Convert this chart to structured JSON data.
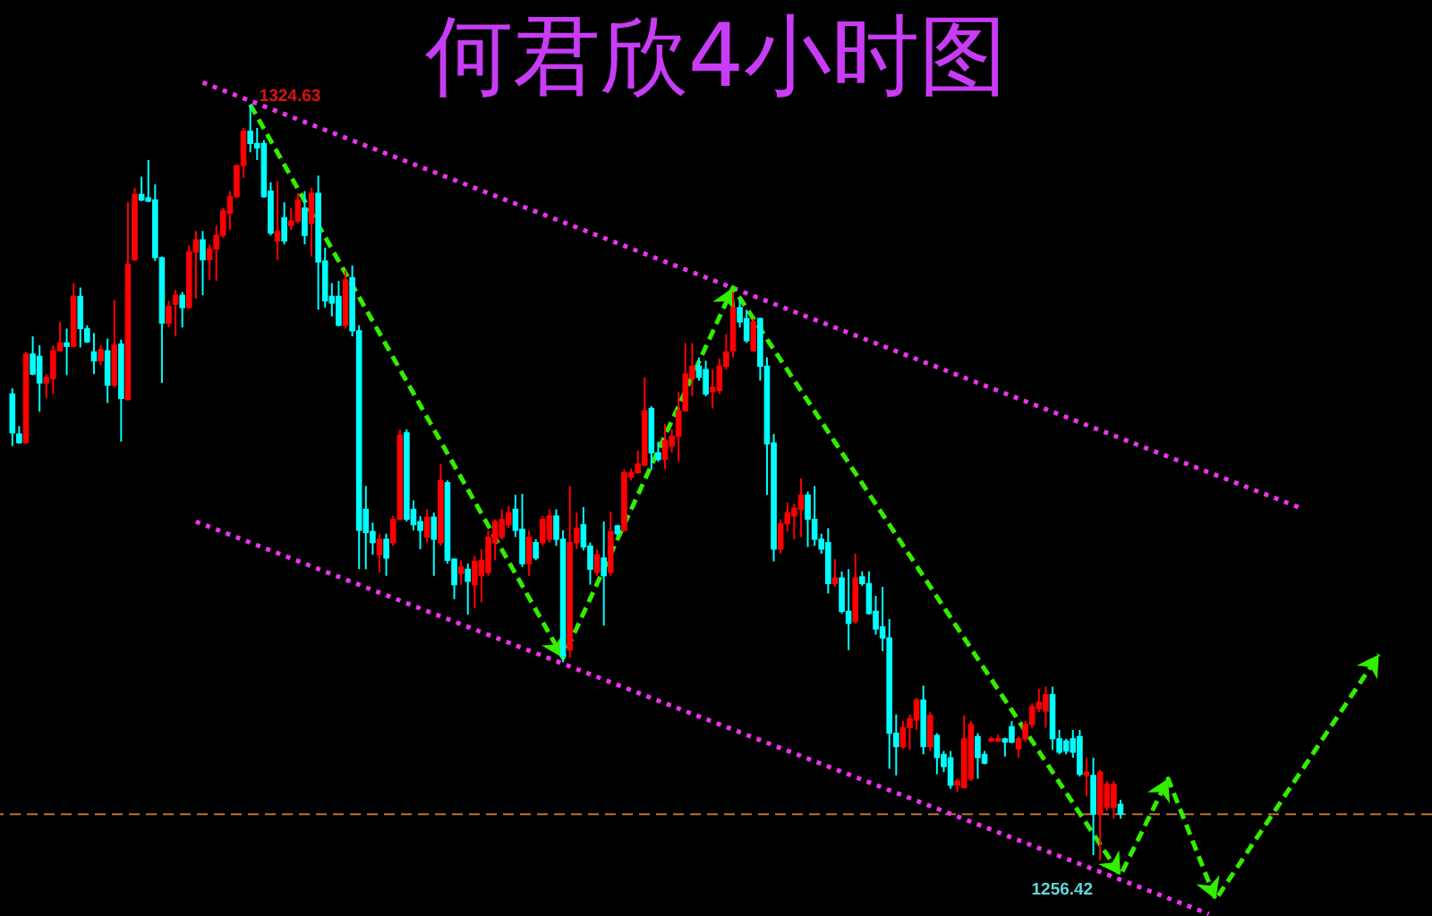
{
  "chart_data": {
    "type": "candlestick",
    "title": "何君欣4小时图",
    "categories": [
      null,
      null,
      null,
      null,
      null,
      null,
      null,
      null,
      null,
      null,
      null,
      null,
      null,
      null,
      null,
      null,
      null,
      null,
      null,
      null,
      null,
      null,
      null,
      null,
      null,
      null,
      null,
      null,
      null,
      null,
      null,
      null,
      null,
      null,
      null,
      null,
      null,
      null,
      null,
      null,
      null,
      null,
      null,
      null,
      null,
      null,
      null,
      null,
      null,
      null,
      null,
      null,
      null,
      null,
      null,
      null,
      null,
      null,
      null,
      null,
      null,
      null,
      null,
      null,
      null,
      null,
      null,
      null,
      null,
      null,
      null,
      null,
      null,
      null,
      null,
      null,
      null,
      null,
      null,
      null,
      null,
      null,
      null,
      null,
      null,
      null,
      null,
      null,
      null,
      null,
      null,
      null,
      null,
      null,
      null,
      null,
      null,
      null,
      null,
      null,
      null,
      null,
      null,
      null,
      null,
      null,
      null,
      null,
      null,
      null,
      null,
      null,
      null,
      null,
      null,
      null,
      null,
      null,
      null,
      null,
      null,
      null,
      null,
      null,
      null,
      null,
      null,
      null,
      null,
      null,
      null,
      null,
      null,
      null,
      null,
      null,
      null,
      null,
      null,
      null,
      null,
      null,
      null,
      null,
      null,
      null,
      null,
      null,
      null,
      null,
      null,
      null,
      null,
      null,
      null,
      null,
      null,
      null,
      null,
      null,
      null,
      null,
      null,
      null,
      null,
      null,
      null,
      null,
      null,
      null,
      null,
      null,
      null,
      null,
      null,
      null,
      null,
      null,
      null,
      null,
      null,
      null,
      null,
      null,
      null,
      null,
      null,
      null,
      null,
      null,
      null,
      null,
      null,
      null,
      null,
      null,
      null,
      null,
      null,
      null,
      null,
      null,
      null,
      null,
      null,
      null,
      null,
      null
    ],
    "ohlc": [
      [
        1298.5,
        1299.0,
        1293.8,
        1295.0
      ],
      [
        1294.9,
        1295.6,
        1294.0,
        1294.1
      ],
      [
        1294.1,
        1302.3,
        1294.0,
        1302.1
      ],
      [
        1302.1,
        1303.7,
        1300.2,
        1300.3
      ],
      [
        1301.9,
        1302.9,
        1296.9,
        1299.5
      ],
      [
        1299.5,
        1300.3,
        1298.1,
        1300.0
      ],
      [
        1299.9,
        1302.9,
        1298.5,
        1302.4
      ],
      [
        1302.4,
        1305.0,
        1302.3,
        1303.1
      ],
      [
        1303.1,
        1304.4,
        1300.2,
        1302.8
      ],
      [
        1302.8,
        1308.5,
        1302.7,
        1307.3
      ],
      [
        1307.3,
        1308.1,
        1302.7,
        1304.4
      ],
      [
        1304.4,
        1304.7,
        1303.1,
        1303.2
      ],
      [
        1302.3,
        1304.0,
        1300.3,
        1301.5
      ],
      [
        1301.5,
        1302.9,
        1301.1,
        1302.5
      ],
      [
        1302.4,
        1303.5,
        1297.7,
        1299.3
      ],
      [
        1299.3,
        1307.0,
        1299.1,
        1302.9
      ],
      [
        1303.0,
        1303.4,
        1294.2,
        1298.1
      ],
      [
        1298.0,
        1315.8,
        1297.9,
        1310.2
      ],
      [
        1310.6,
        1317.1,
        1310.5,
        1316.5
      ],
      [
        1316.5,
        1318.1,
        1315.9,
        1316.0
      ],
      [
        1316.2,
        1319.6,
        1315.8,
        1315.9
      ],
      [
        1316.0,
        1317.4,
        1310.5,
        1310.8
      ],
      [
        1310.8,
        1310.9,
        1299.5,
        1304.9
      ],
      [
        1304.9,
        1306.9,
        1304.5,
        1306.4
      ],
      [
        1306.6,
        1307.9,
        1303.7,
        1307.4
      ],
      [
        1307.4,
        1307.7,
        1304.5,
        1306.3
      ],
      [
        1306.3,
        1311.9,
        1306.2,
        1311.3
      ],
      [
        1311.3,
        1313.2,
        1307.1,
        1312.4
      ],
      [
        1312.4,
        1313.2,
        1307.4,
        1310.6
      ],
      [
        1310.6,
        1312.0,
        1308.8,
        1311.6
      ],
      [
        1311.6,
        1313.7,
        1308.7,
        1312.8
      ],
      [
        1312.8,
        1315.3,
        1312.6,
        1315.0
      ],
      [
        1314.8,
        1316.8,
        1313.3,
        1316.3
      ],
      [
        1316.3,
        1319.2,
        1316.2,
        1319.1
      ],
      [
        1319.1,
        1322.5,
        1318.0,
        1322.2
      ],
      [
        1322.2,
        1324.63,
        1320.3,
        1321.1
      ],
      [
        1321.1,
        1322.5,
        1319.6,
        1320.7
      ],
      [
        1321.1,
        1321.4,
        1316.2,
        1316.3
      ],
      [
        1316.8,
        1317.6,
        1312.8,
        1313.0
      ],
      [
        1312.3,
        1317.7,
        1310.6,
        1313.2
      ],
      [
        1314.4,
        1315.8,
        1312.0,
        1312.3
      ],
      [
        1313.7,
        1315.3,
        1313.3,
        1314.1
      ],
      [
        1314.1,
        1316.6,
        1313.9,
        1316.0
      ],
      [
        1315.3,
        1316.8,
        1312.0,
        1312.8
      ],
      [
        1313.9,
        1317.1,
        1310.9,
        1316.6
      ],
      [
        1316.6,
        1318.2,
        1306.1,
        1310.4
      ],
      [
        1310.5,
        1311.7,
        1306.3,
        1306.9
      ],
      [
        1307.3,
        1308.5,
        1305.5,
        1306.7
      ],
      [
        1307.3,
        1308.7,
        1304.6,
        1304.7
      ],
      [
        1304.7,
        1309.6,
        1304.4,
        1308.8
      ],
      [
        1309.0,
        1310.1,
        1303.7,
        1304.2
      ],
      [
        1304.2,
        1304.7,
        1282.7,
        1286.2
      ],
      [
        1288.1,
        1290.2,
        1282.7,
        1286.0
      ],
      [
        1286.1,
        1286.9,
        1284.0,
        1285.1
      ],
      [
        1284.0,
        1285.9,
        1282.4,
        1285.4
      ],
      [
        1285.4,
        1285.9,
        1282.1,
        1283.7
      ],
      [
        1285.1,
        1287.5,
        1284.8,
        1287.2
      ],
      [
        1287.2,
        1295.3,
        1287.1,
        1294.8
      ],
      [
        1295.0,
        1295.3,
        1287.0,
        1287.2
      ],
      [
        1288.1,
        1288.9,
        1286.2,
        1286.7
      ],
      [
        1287.0,
        1287.5,
        1284.5,
        1286.2
      ],
      [
        1285.6,
        1288.1,
        1285.1,
        1287.4
      ],
      [
        1287.4,
        1287.8,
        1282.1,
        1285.4
      ],
      [
        1285.1,
        1292.2,
        1284.8,
        1290.7
      ],
      [
        1290.5,
        1290.7,
        1283.2,
        1283.5
      ],
      [
        1283.6,
        1283.7,
        1280.0,
        1281.3
      ],
      [
        1282.3,
        1283.5,
        1281.3,
        1282.9
      ],
      [
        1282.7,
        1283.2,
        1278.6,
        1281.6
      ],
      [
        1281.3,
        1283.9,
        1279.2,
        1283.4
      ],
      [
        1282.1,
        1284.5,
        1279.7,
        1283.5
      ],
      [
        1282.4,
        1286.2,
        1282.1,
        1285.6
      ],
      [
        1285.1,
        1287.2,
        1283.5,
        1287.0
      ],
      [
        1285.6,
        1288.1,
        1285.4,
        1287.2
      ],
      [
        1286.7,
        1288.4,
        1286.4,
        1287.8
      ],
      [
        1288.1,
        1289.4,
        1285.6,
        1286.2
      ],
      [
        1286.3,
        1289.5,
        1282.9,
        1283.2
      ],
      [
        1283.2,
        1286.2,
        1282.1,
        1285.6
      ],
      [
        1285.1,
        1285.4,
        1283.5,
        1283.7
      ],
      [
        1285.1,
        1287.5,
        1284.8,
        1287.2
      ],
      [
        1285.4,
        1288.1,
        1285.1,
        1287.5
      ],
      [
        1287.5,
        1288.1,
        1284.8,
        1285.4
      ],
      [
        1285.4,
        1286.2,
        1274.3,
        1274.9
      ],
      [
        1275.4,
        1290.2,
        1274.7,
        1285.1
      ],
      [
        1285.1,
        1287.8,
        1284.5,
        1286.4
      ],
      [
        1286.7,
        1288.3,
        1284.4,
        1284.7
      ],
      [
        1284.8,
        1285.1,
        1281.3,
        1282.7
      ],
      [
        1282.4,
        1284.5,
        1282.1,
        1284.0
      ],
      [
        1283.7,
        1287.0,
        1277.6,
        1282.1
      ],
      [
        1282.4,
        1287.9,
        1282.1,
        1286.1
      ],
      [
        1286.6,
        1286.7,
        1285.7,
        1285.9
      ],
      [
        1286.2,
        1291.7,
        1286.1,
        1291.4
      ],
      [
        1291.0,
        1291.8,
        1290.7,
        1291.4
      ],
      [
        1291.4,
        1293.4,
        1291.3,
        1292.2
      ],
      [
        1292.1,
        1300.0,
        1292.0,
        1297.0
      ],
      [
        1297.2,
        1297.4,
        1291.7,
        1293.2
      ],
      [
        1293.2,
        1294.2,
        1292.4,
        1292.6
      ],
      [
        1292.6,
        1295.8,
        1291.7,
        1294.3
      ],
      [
        1293.8,
        1295.3,
        1293.2,
        1294.7
      ],
      [
        1294.7,
        1298.7,
        1292.4,
        1297.0
      ],
      [
        1297.0,
        1303.1,
        1296.9,
        1300.3
      ],
      [
        1299.9,
        1303.1,
        1298.3,
        1301.0
      ],
      [
        1301.0,
        1301.8,
        1299.7,
        1300.0
      ],
      [
        1300.7,
        1301.5,
        1298.3,
        1298.5
      ],
      [
        1298.7,
        1300.7,
        1297.2,
        1299.1
      ],
      [
        1298.8,
        1301.7,
        1298.5,
        1301.0
      ],
      [
        1301.0,
        1303.9,
        1300.7,
        1302.3
      ],
      [
        1302.4,
        1307.7,
        1301.8,
        1306.3
      ],
      [
        1306.3,
        1307.0,
        1304.5,
        1305.0
      ],
      [
        1305.3,
        1306.1,
        1303.1,
        1303.3
      ],
      [
        1302.4,
        1305.3,
        1302.3,
        1305.0
      ],
      [
        1305.3,
        1305.4,
        1299.7,
        1301.0
      ],
      [
        1301.0,
        1301.8,
        1289.4,
        1294.0
      ],
      [
        1294.1,
        1294.9,
        1283.4,
        1284.5
      ],
      [
        1284.5,
        1287.2,
        1284.1,
        1286.8
      ],
      [
        1286.8,
        1288.7,
        1286.1,
        1287.8
      ],
      [
        1287.5,
        1288.6,
        1285.4,
        1288.2
      ],
      [
        1288.1,
        1290.9,
        1285.6,
        1289.4
      ],
      [
        1289.4,
        1289.7,
        1284.7,
        1287.2
      ],
      [
        1287.2,
        1290.2,
        1284.8,
        1285.4
      ],
      [
        1285.4,
        1285.9,
        1284.1,
        1284.5
      ],
      [
        1285.1,
        1286.4,
        1280.5,
        1281.4
      ],
      [
        1281.4,
        1283.6,
        1281.1,
        1281.9
      ],
      [
        1281.9,
        1282.5,
        1278.7,
        1278.9
      ],
      [
        1278.9,
        1282.7,
        1275.4,
        1277.8
      ],
      [
        1278.0,
        1284.1,
        1277.8,
        1281.9
      ],
      [
        1282.0,
        1282.5,
        1281.2,
        1281.4
      ],
      [
        1281.4,
        1282.5,
        1278.6,
        1278.7
      ],
      [
        1278.9,
        1280.3,
        1276.8,
        1277.3
      ],
      [
        1277.5,
        1281.1,
        1275.3,
        1276.5
      ],
      [
        1276.5,
        1278.2,
        1264.7,
        1267.9
      ],
      [
        1267.9,
        1269.6,
        1264.1,
        1266.7
      ],
      [
        1266.7,
        1269.0,
        1266.5,
        1268.4
      ],
      [
        1268.4,
        1269.6,
        1266.4,
        1269.2
      ],
      [
        1269.1,
        1271.1,
        1268.2,
        1270.9
      ],
      [
        1270.9,
        1272.2,
        1266.0,
        1266.7
      ],
      [
        1266.7,
        1269.8,
        1266.3,
        1269.5
      ],
      [
        1267.7,
        1267.9,
        1264.2,
        1265.7
      ],
      [
        1266.0,
        1266.3,
        1264.4,
        1264.9
      ],
      [
        1265.7,
        1266.3,
        1262.9,
        1263.2
      ],
      [
        1263.2,
        1263.8,
        1262.6,
        1263.6
      ],
      [
        1263.0,
        1269.5,
        1262.9,
        1267.4
      ],
      [
        1263.8,
        1269.0,
        1263.6,
        1268.7
      ],
      [
        1267.6,
        1267.9,
        1263.8,
        1265.7
      ],
      [
        1266.0,
        1266.3,
        1265.1,
        1265.2
      ],
      [
        1267.2,
        1267.6,
        1267.1,
        1267.4
      ],
      [
        1267.2,
        1267.8,
        1267.1,
        1267.4
      ],
      [
        1267.4,
        1267.5,
        1265.8,
        1267.1
      ],
      [
        1268.5,
        1269.0,
        1267.0,
        1267.1
      ],
      [
        1266.5,
        1267.6,
        1265.7,
        1267.4
      ],
      [
        1267.4,
        1269.0,
        1267.1,
        1268.7
      ],
      [
        1268.7,
        1270.6,
        1268.4,
        1270.3
      ],
      [
        1270.1,
        1271.9,
        1269.8,
        1270.7
      ],
      [
        1269.9,
        1272.1,
        1268.4,
        1271.4
      ],
      [
        1271.4,
        1272.1,
        1266.4,
        1267.4
      ],
      [
        1267.4,
        1268.2,
        1266.0,
        1266.2
      ],
      [
        1267.2,
        1267.4,
        1266.0,
        1266.3
      ],
      [
        1267.4,
        1268.2,
        1265.7,
        1266.2
      ],
      [
        1267.6,
        1268.2,
        1264.0,
        1264.2
      ],
      [
        1264.1,
        1265.7,
        1262.2,
        1264.4
      ],
      [
        1264.1,
        1265.7,
        1256.9,
        1260.6
      ],
      [
        1260.6,
        1264.6,
        1256.42,
        1264.4
      ],
      [
        1261.2,
        1263.6,
        1260.9,
        1263.3
      ],
      [
        1261.2,
        1263.6,
        1260.2,
        1263.3
      ],
      [
        1261.5,
        1261.9,
        1260.2,
        1260.6
      ],
      null,
      null,
      null,
      null,
      null,
      null,
      null,
      null,
      null,
      null,
      null,
      null,
      null,
      null,
      null,
      null,
      null,
      null,
      null,
      null,
      null,
      null,
      null,
      null,
      null,
      null,
      null,
      null,
      null,
      null,
      null,
      null,
      null,
      null,
      null,
      null,
      null,
      null,
      null,
      null,
      null,
      null,
      null,
      null
    ],
    "colors": [
      "#00ffff",
      "#00ffff",
      "#ff0000",
      "#00ffff",
      "#00ffff",
      "#ff0000",
      "#ff0000",
      "#ff0000",
      "#00ffff",
      "#ff0000",
      "#00ffff",
      "#00ffff",
      "#00ffff",
      "#ff0000",
      "#00ffff",
      "#ff0000",
      "#00ffff",
      "#ff0000",
      "#ff0000",
      "#00ffff",
      "#00ffff",
      "#00ffff",
      "#00ffff",
      "#ff0000",
      "#ff0000",
      "#00ffff",
      "#ff0000",
      "#ff0000",
      "#00ffff",
      "#ff0000",
      "#ff0000",
      "#ff0000",
      "#ff0000",
      "#ff0000",
      "#ff0000",
      "#00ffff",
      "#00ffff",
      "#00ffff",
      "#00ffff",
      "#ff0000",
      "#00ffff",
      "#ff0000",
      "#ff0000",
      "#00ffff",
      "#ff0000",
      "#00ffff",
      "#00ffff",
      "#00ffff",
      "#00ffff",
      "#ff0000",
      "#00ffff",
      "#00ffff",
      "#00ffff",
      "#00ffff",
      "#ff0000",
      "#00ffff",
      "#ff0000",
      "#ff0000",
      "#00ffff",
      "#00ffff",
      "#00ffff",
      "#ff0000",
      "#00ffff",
      "#ff0000",
      "#00ffff",
      "#00ffff",
      "#ff0000",
      "#00ffff",
      "#ff0000",
      "#ff0000",
      "#ff0000",
      "#ff0000",
      "#ff0000",
      "#ff0000",
      "#00ffff",
      "#00ffff",
      "#ff0000",
      "#00ffff",
      "#ff0000",
      "#ff0000",
      "#00ffff",
      "#00ffff",
      "#ff0000",
      "#ff0000",
      "#00ffff",
      "#00ffff",
      "#ff0000",
      "#00ffff",
      "#ff0000",
      "#00ffff",
      "#ff0000",
      "#ff0000",
      "#ff0000",
      "#ff0000",
      "#00ffff",
      "#00ffff",
      "#ff0000",
      "#ff0000",
      "#ff0000",
      "#ff0000",
      "#ff0000",
      "#00ffff",
      "#00ffff",
      "#ff0000",
      "#ff0000",
      "#ff0000",
      "#ff0000",
      "#00ffff",
      "#00ffff",
      "#ff0000",
      "#00ffff",
      "#00ffff",
      "#00ffff",
      "#ff0000",
      "#ff0000",
      "#ff0000",
      "#ff0000",
      "#00ffff",
      "#00ffff",
      "#00ffff",
      "#00ffff",
      "#ff0000",
      "#00ffff",
      "#00ffff",
      "#ff0000",
      "#00ffff",
      "#00ffff",
      "#00ffff",
      "#00ffff",
      "#00ffff",
      "#00ffff",
      "#ff0000",
      "#ff0000",
      "#ff0000",
      "#00ffff",
      "#ff0000",
      "#00ffff",
      "#00ffff",
      "#00ffff",
      "#ff0000",
      "#ff0000",
      "#ff0000",
      "#00ffff",
      "#00ffff",
      "#ff0000",
      "#ff0000",
      "#00ffff",
      "#00ffff",
      "#ff0000",
      "#ff0000",
      "#ff0000",
      "#ff0000",
      "#ff0000",
      "#00ffff",
      "#00ffff",
      "#00ffff",
      "#00ffff",
      "#00ffff",
      "#ff0000",
      "#00ffff",
      "#ff0000",
      "#ff0000",
      "#ff0000",
      "#00ffff",
      null,
      null,
      null,
      null,
      null,
      null,
      null,
      null,
      null,
      null,
      null,
      null,
      null,
      null,
      null,
      null,
      null,
      null,
      null,
      null,
      null,
      null,
      null,
      null,
      null,
      null,
      null,
      null,
      null,
      null,
      null,
      null,
      null,
      null,
      null,
      null,
      null,
      null,
      null,
      null,
      null,
      null,
      null,
      null
    ],
    "series": [
      {
        "type": "line",
        "color": "#ee33ee",
        "line_style": "dotted",
        "values": [
          null,
          null,
          null,
          null,
          null,
          null,
          null,
          null,
          null,
          null,
          null,
          null,
          null,
          null,
          null,
          null,
          null,
          null,
          null,
          null,
          null,
          null,
          null,
          null,
          null,
          null,
          null,
          null,
          1326.6,
          null,
          null,
          null,
          null,
          null,
          null,
          null,
          null,
          null,
          null,
          null,
          null,
          null,
          null,
          null,
          null,
          null,
          null,
          null,
          null,
          null,
          null,
          null,
          null,
          null,
          null,
          null,
          null,
          null,
          null,
          null,
          null,
          null,
          null,
          null,
          null,
          null,
          null,
          null,
          null,
          null,
          null,
          null,
          null,
          null,
          null,
          null,
          null,
          null,
          null,
          null,
          null,
          null,
          null,
          null,
          null,
          null,
          null,
          null,
          null,
          null,
          null,
          null,
          null,
          null,
          null,
          null,
          null,
          null,
          null,
          null,
          null,
          null,
          null,
          null,
          null,
          null,
          null,
          null,
          null,
          null,
          null,
          null,
          null,
          null,
          null,
          null,
          null,
          null,
          null,
          null,
          null,
          null,
          null,
          null,
          null,
          null,
          null,
          null,
          null,
          null,
          null,
          null,
          null,
          null,
          null,
          null,
          null,
          null,
          null,
          null,
          null,
          null,
          null,
          null,
          null,
          null,
          null,
          null,
          null,
          null,
          null,
          null,
          null,
          null,
          null,
          null,
          null,
          null,
          null,
          null,
          null,
          null,
          null,
          null,
          null,
          null,
          null,
          null,
          null,
          null,
          null,
          null,
          null,
          null,
          null,
          null,
          null,
          null,
          null,
          null,
          null,
          null,
          null,
          null,
          null,
          null,
          null,
          null,
          null,
          null,
          1288.1,
          null,
          null,
          null,
          null,
          null,
          null,
          null,
          null,
          null,
          null,
          null,
          null,
          null,
          null,
          null,
          null,
          null
        ]
      },
      {
        "type": "line",
        "color": "#ee33ee",
        "line_style": "dotted",
        "values": [
          null,
          null,
          null,
          null,
          null,
          null,
          null,
          null,
          null,
          null,
          null,
          null,
          null,
          null,
          null,
          null,
          null,
          null,
          null,
          null,
          null,
          null,
          null,
          null,
          null,
          null,
          null,
          1287.0,
          null,
          null,
          null,
          null,
          null,
          null,
          null,
          null,
          null,
          null,
          null,
          null,
          null,
          null,
          null,
          null,
          null,
          null,
          null,
          null,
          null,
          null,
          null,
          null,
          null,
          null,
          null,
          null,
          null,
          null,
          null,
          null,
          null,
          null,
          null,
          null,
          null,
          null,
          null,
          null,
          null,
          null,
          null,
          null,
          null,
          null,
          null,
          null,
          null,
          null,
          null,
          null,
          null,
          null,
          null,
          null,
          null,
          null,
          null,
          null,
          null,
          null,
          null,
          null,
          null,
          null,
          null,
          null,
          null,
          null,
          null,
          null,
          null,
          null,
          null,
          null,
          null,
          null,
          null,
          null,
          null,
          null,
          null,
          null,
          null,
          null,
          null,
          null,
          null,
          null,
          null,
          null,
          null,
          null,
          null,
          null,
          null,
          null,
          null,
          null,
          null,
          null,
          null,
          null,
          null,
          null,
          null,
          null,
          null,
          null,
          null,
          null,
          null,
          null,
          null,
          null,
          null,
          null,
          null,
          null,
          null,
          null,
          null,
          null,
          null,
          null,
          null,
          null,
          null,
          null,
          null,
          null,
          null,
          null,
          null,
          null,
          null,
          null,
          null,
          null,
          null,
          null,
          null,
          null,
          null,
          null,
          null,
          null,
          1251.6,
          null,
          null,
          null,
          null,
          null,
          null,
          null,
          null,
          null,
          null,
          null,
          null,
          null,
          null,
          null,
          null,
          null,
          null,
          null,
          null,
          null,
          null,
          null,
          null,
          null,
          null,
          null,
          null,
          null,
          null,
          null
        ]
      },
      {
        "type": "line",
        "color": "#33ee00",
        "line_style": "dashed",
        "values": [
          null,
          null,
          null,
          null,
          null,
          null,
          null,
          null,
          null,
          null,
          null,
          null,
          null,
          null,
          null,
          null,
          null,
          null,
          null,
          null,
          null,
          null,
          null,
          null,
          null,
          null,
          null,
          null,
          null,
          null,
          null,
          null,
          null,
          null,
          null,
          1324.6,
          null,
          null,
          null,
          null,
          null,
          null,
          null,
          null,
          null,
          null,
          null,
          null,
          null,
          null,
          null,
          null,
          null,
          null,
          null,
          null,
          null,
          null,
          null,
          null,
          null,
          null,
          null,
          null,
          null,
          null,
          null,
          null,
          null,
          null,
          null,
          null,
          null,
          null,
          null,
          null,
          null,
          null,
          null,
          null,
          null,
          1274.7,
          null,
          null,
          null,
          null,
          null,
          null,
          null,
          null,
          null,
          null,
          null,
          null,
          null,
          null,
          null,
          null,
          null,
          null,
          null,
          null,
          null,
          null,
          null,
          null,
          1308.1,
          null,
          null,
          null,
          null,
          null,
          null,
          null,
          null,
          null,
          null,
          null,
          null,
          null,
          null,
          null,
          null,
          null,
          null,
          null,
          null,
          null,
          null,
          null,
          null,
          null,
          null,
          null,
          null,
          null,
          null,
          null,
          null,
          null,
          null,
          null,
          null,
          null,
          null,
          null,
          null,
          null,
          null,
          null,
          null,
          null,
          null,
          null,
          null,
          null,
          null,
          null,
          null,
          null,
          null,
          null,
          null,
          1255.1,
          null,
          null,
          null,
          null,
          null,
          null,
          1263.8,
          null,
          null,
          null,
          null,
          null,
          null,
          1252.9,
          null,
          null,
          null,
          null,
          null,
          null,
          null,
          null,
          null,
          null,
          null,
          null,
          null,
          null,
          null,
          null,
          null,
          null,
          null,
          null,
          null,
          null,
          null,
          1275.0,
          null,
          null,
          null,
          null,
          null,
          null
        ]
      }
    ],
    "ref_lines": [
      {
        "axis": "y",
        "value": 1260.6,
        "color": "#b87333",
        "line_style": "dashed"
      }
    ],
    "annotations": [
      "1324.63",
      {
        "text": "1256.42",
        "y": 1256.42
      }
    ],
    "tick_labels": false
  }
}
